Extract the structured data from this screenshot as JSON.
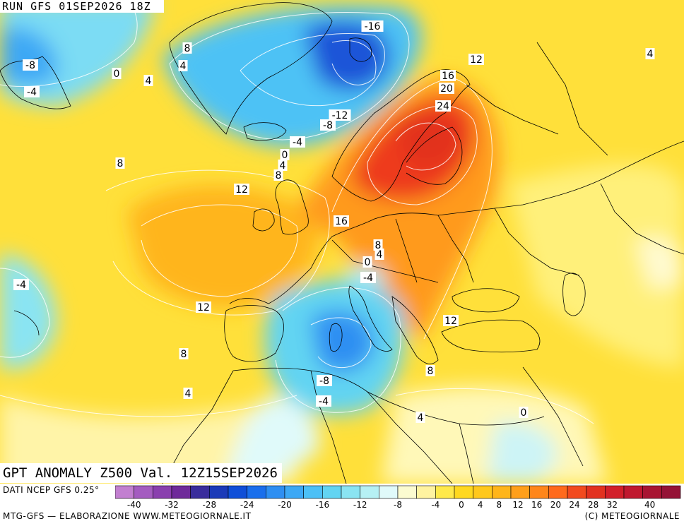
{
  "header": {
    "run_label": "RUN GFS 01SEP2026 18Z"
  },
  "title": {
    "valid_label": "GPT ANOMALY Z500 Val. 12Z15SEP2026"
  },
  "footer": {
    "source": "DATI NCEP GFS 0.25°",
    "credit": "MTG-GFS — ELABORAZIONE WWW.METEOGIORNALE.IT",
    "copyright": "(C) METEOGIORNALE"
  },
  "legend": {
    "ticks": [
      "-40",
      "-32",
      "-28",
      "-24",
      "-20",
      "-16",
      "-12",
      "-8",
      "-4",
      "0",
      "4",
      "8",
      "12",
      "16",
      "20",
      "24",
      "28",
      "32",
      "40"
    ],
    "colors": [
      "#c27fd0",
      "#a45cc0",
      "#8a3fae",
      "#6f2a9a",
      "#3a2d9c",
      "#1b3ab8",
      "#0f4fd8",
      "#1a6fec",
      "#2e8ff2",
      "#3ca8f5",
      "#4cc0f6",
      "#62d4f2",
      "#8ae4f2",
      "#b6f0f4",
      "#e0fafa",
      "#fbfbd0",
      "#fff3a0",
      "#ffe94a",
      "#ffd81f",
      "#ffc81c",
      "#ffb51a",
      "#ff9f1a",
      "#ff861a",
      "#ff6a1c",
      "#f24a1e",
      "#e2311f",
      "#d21f2a",
      "#c0182f",
      "#a81532",
      "#951236"
    ]
  },
  "map": {
    "contour_labels": [
      {
        "text": "-16"
      },
      {
        "text": "-8"
      },
      {
        "text": "-4"
      },
      {
        "text": "0"
      },
      {
        "text": "4"
      },
      {
        "text": "8"
      },
      {
        "text": "4"
      },
      {
        "text": "12"
      },
      {
        "text": "16"
      },
      {
        "text": "20"
      },
      {
        "text": "24"
      },
      {
        "text": "-12"
      },
      {
        "text": "-8"
      },
      {
        "text": "-4"
      },
      {
        "text": "0"
      },
      {
        "text": "4"
      },
      {
        "text": "8"
      },
      {
        "text": "8"
      },
      {
        "text": "12"
      },
      {
        "text": "16"
      },
      {
        "text": "8"
      },
      {
        "text": "4"
      },
      {
        "text": "0"
      },
      {
        "text": "-4"
      },
      {
        "text": "-4"
      },
      {
        "text": "12"
      },
      {
        "text": "12"
      },
      {
        "text": "8"
      },
      {
        "text": "8"
      },
      {
        "text": "4"
      },
      {
        "text": "-8"
      },
      {
        "text": "-4"
      },
      {
        "text": "4"
      },
      {
        "text": "0"
      },
      {
        "text": "4"
      }
    ]
  }
}
